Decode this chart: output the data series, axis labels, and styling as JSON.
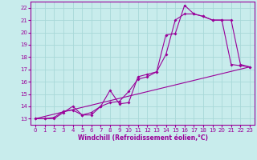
{
  "background_color": "#c8ecec",
  "grid_color": "#a8d8d8",
  "line_color": "#990099",
  "xlabel": "Windchill (Refroidissement éolien,°C)",
  "xlim": [
    -0.5,
    23.5
  ],
  "ylim": [
    12.5,
    22.5
  ],
  "yticks": [
    13,
    14,
    15,
    16,
    17,
    18,
    19,
    20,
    21,
    22
  ],
  "xticks": [
    0,
    1,
    2,
    3,
    4,
    5,
    6,
    7,
    8,
    9,
    10,
    11,
    12,
    13,
    14,
    15,
    16,
    17,
    18,
    19,
    20,
    21,
    22,
    23
  ],
  "series1_x": [
    0,
    1,
    2,
    3,
    4,
    5,
    6,
    7,
    8,
    9,
    10,
    11,
    12,
    13,
    14,
    15,
    16,
    17,
    18,
    19,
    20,
    21,
    22,
    23
  ],
  "series1_y": [
    13.0,
    13.0,
    13.0,
    13.5,
    14.0,
    13.3,
    13.3,
    14.0,
    15.3,
    14.2,
    14.3,
    16.4,
    16.6,
    16.8,
    19.8,
    19.9,
    22.2,
    21.5,
    21.3,
    21.0,
    21.0,
    17.4,
    17.3,
    17.2
  ],
  "series2_x": [
    0,
    1,
    2,
    3,
    4,
    5,
    6,
    7,
    8,
    9,
    10,
    11,
    12,
    13,
    14,
    15,
    16,
    17,
    18,
    19,
    20,
    21,
    22,
    23
  ],
  "series2_y": [
    13.0,
    13.0,
    13.1,
    13.6,
    13.7,
    13.3,
    13.5,
    14.0,
    14.3,
    14.4,
    15.2,
    16.2,
    16.4,
    16.8,
    18.2,
    21.0,
    21.5,
    21.5,
    21.3,
    21.0,
    21.0,
    21.0,
    17.4,
    17.2
  ],
  "series3_x": [
    0,
    23
  ],
  "series3_y": [
    13.0,
    17.2
  ]
}
